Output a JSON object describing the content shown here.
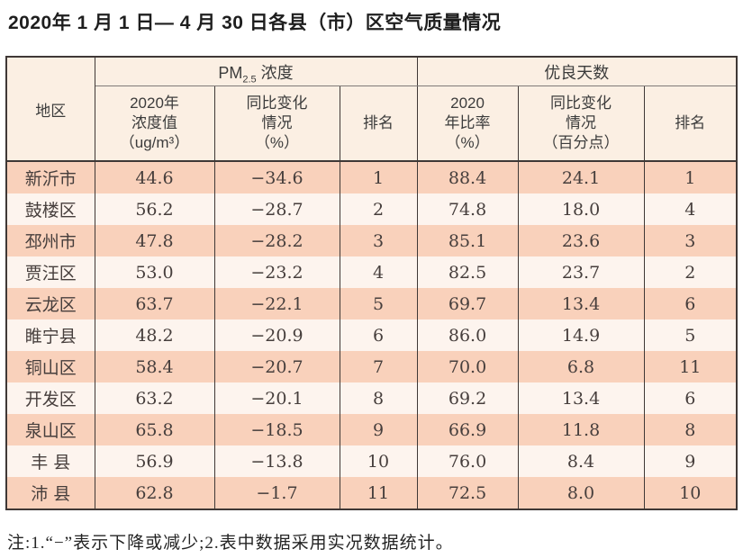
{
  "title": "2020年 1 月 1 日— 4 月 30 日各县（市）区空气质量情况",
  "table": {
    "header": {
      "region": "地区",
      "pm25": {
        "prefix": "PM",
        "sub": "2.5",
        "suffix": " 浓度"
      },
      "good_days": "优良天数",
      "sub_columns": [
        "2020年\n浓度值\n（ug/m³）",
        "同比变化\n情况\n（%）",
        "排名",
        "2020\n年比率\n（%）",
        "同比变化\n情况\n（百分点）",
        "排名"
      ]
    },
    "rows": [
      {
        "region": "新沂市",
        "pm_value": "44.6",
        "pm_change": "−34.6",
        "pm_rank": "1",
        "good_rate": "88.4",
        "good_change": "24.1",
        "good_rank": "1"
      },
      {
        "region": "鼓楼区",
        "pm_value": "56.2",
        "pm_change": "−28.7",
        "pm_rank": "2",
        "good_rate": "74.8",
        "good_change": "18.0",
        "good_rank": "4"
      },
      {
        "region": "邳州市",
        "pm_value": "47.8",
        "pm_change": "−28.2",
        "pm_rank": "3",
        "good_rate": "85.1",
        "good_change": "23.6",
        "good_rank": "3"
      },
      {
        "region": "贾汪区",
        "pm_value": "53.0",
        "pm_change": "−23.2",
        "pm_rank": "4",
        "good_rate": "82.5",
        "good_change": "23.7",
        "good_rank": "2"
      },
      {
        "region": "云龙区",
        "pm_value": "63.7",
        "pm_change": "−22.1",
        "pm_rank": "5",
        "good_rate": "69.7",
        "good_change": "13.4",
        "good_rank": "6"
      },
      {
        "region": "睢宁县",
        "pm_value": "48.2",
        "pm_change": "−20.9",
        "pm_rank": "6",
        "good_rate": "86.0",
        "good_change": "14.9",
        "good_rank": "5"
      },
      {
        "region": "铜山区",
        "pm_value": "58.4",
        "pm_change": "−20.7",
        "pm_rank": "7",
        "good_rate": "70.0",
        "good_change": "6.8",
        "good_rank": "11"
      },
      {
        "region": "开发区",
        "pm_value": "63.2",
        "pm_change": "−20.1",
        "pm_rank": "8",
        "good_rate": "69.2",
        "good_change": "13.4",
        "good_rank": "6"
      },
      {
        "region": "泉山区",
        "pm_value": "65.8",
        "pm_change": "−18.5",
        "pm_rank": "9",
        "good_rate": "66.9",
        "good_change": "11.8",
        "good_rank": "8"
      },
      {
        "region": "丰 县",
        "pm_value": "56.9",
        "pm_change": "−13.8",
        "pm_rank": "10",
        "good_rate": "76.0",
        "good_change": "8.4",
        "good_rank": "9"
      },
      {
        "region": "沛 县",
        "pm_value": "62.8",
        "pm_change": "−1.7",
        "pm_rank": "11",
        "good_rate": "72.5",
        "good_change": "8.0",
        "good_rank": "10"
      }
    ]
  },
  "note": "注:1.“−”表示下降或减少;2.表中数据采用实况数据统计。",
  "colors": {
    "row_odd": "#f9d1bb",
    "row_even": "#fdf4ee",
    "header_bg": "#fbefe3",
    "border": "#3f3836"
  }
}
